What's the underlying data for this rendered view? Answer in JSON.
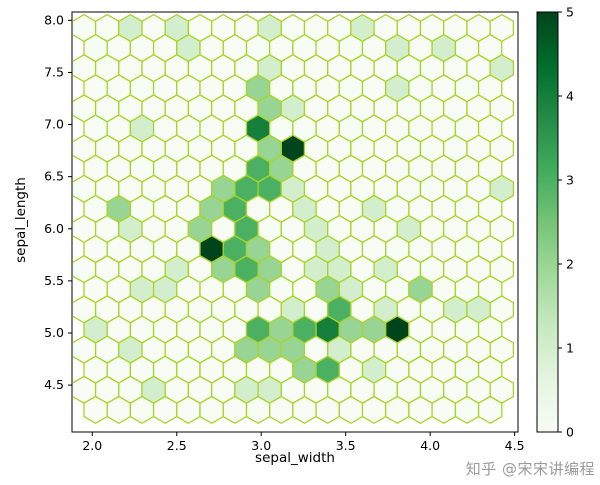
{
  "watermark": "知乎 @宋宋讲编程",
  "chart_data": {
    "type": "heatmap",
    "subtype": "hexbin",
    "title": "",
    "xlabel": "sepal_width",
    "ylabel": "sepal_length",
    "xlim": [
      1.88,
      4.52
    ],
    "ylim": [
      4.05,
      8.08
    ],
    "xticks": [
      2.0,
      2.5,
      3.0,
      3.5,
      4.0,
      4.5
    ],
    "yticks": [
      4.5,
      5.0,
      5.5,
      6.0,
      6.5,
      7.0,
      7.5,
      8.0
    ],
    "grid": false,
    "colorbar": {
      "min": 0,
      "max": 5,
      "ticks": [
        0,
        1,
        2,
        3,
        4,
        5
      ],
      "position": "right"
    },
    "colormap_name": "Greens",
    "colormap_anchors": [
      "#f7fcf5",
      "#e5f5e0",
      "#c7e9c0",
      "#a1d99b",
      "#74c476",
      "#41ab5d",
      "#238b45",
      "#006d2c",
      "#00441b"
    ],
    "hex_edge_color": "#a8d428",
    "zero_count_color": "#f7fcf5",
    "cells_format": "[sepal_width, sepal_length, count]",
    "cells": [
      [
        2.2,
        7.95,
        1
      ],
      [
        2.5,
        7.9,
        1
      ],
      [
        3.0,
        7.9,
        1
      ],
      [
        3.6,
        7.9,
        1
      ],
      [
        4.1,
        7.8,
        1
      ],
      [
        3.8,
        7.7,
        1
      ],
      [
        2.6,
        7.7,
        1
      ],
      [
        3.0,
        7.6,
        1
      ],
      [
        4.45,
        7.55,
        1
      ],
      [
        2.95,
        7.35,
        2
      ],
      [
        3.05,
        7.25,
        1
      ],
      [
        3.8,
        7.35,
        1
      ],
      [
        3.0,
        7.1,
        2
      ],
      [
        3.15,
        7.15,
        1
      ],
      [
        2.3,
        6.95,
        1
      ],
      [
        3.05,
        6.95,
        4
      ],
      [
        3.0,
        6.8,
        2
      ],
      [
        3.15,
        6.75,
        5
      ],
      [
        2.95,
        6.6,
        3
      ],
      [
        3.1,
        6.55,
        2
      ],
      [
        3.25,
        6.45,
        1
      ],
      [
        2.85,
        6.45,
        3
      ],
      [
        3.0,
        6.4,
        2
      ],
      [
        3.1,
        6.3,
        3
      ],
      [
        2.75,
        6.3,
        2
      ],
      [
        2.9,
        6.2,
        3
      ],
      [
        3.2,
        6.2,
        1
      ],
      [
        2.22,
        6.2,
        2
      ],
      [
        2.65,
        6.1,
        2
      ],
      [
        2.8,
        6.1,
        2
      ],
      [
        2.95,
        6.05,
        3
      ],
      [
        3.3,
        6.0,
        1
      ],
      [
        2.2,
        6.0,
        1
      ],
      [
        3.6,
        6.1,
        1
      ],
      [
        3.85,
        6.0,
        1
      ],
      [
        4.4,
        6.45,
        1
      ],
      [
        2.7,
        5.95,
        2
      ],
      [
        2.65,
        5.8,
        5
      ],
      [
        2.8,
        5.85,
        3
      ],
      [
        2.9,
        5.9,
        2
      ],
      [
        2.75,
        5.7,
        2
      ],
      [
        2.95,
        5.7,
        3
      ],
      [
        3.05,
        5.75,
        2
      ],
      [
        2.85,
        5.55,
        3
      ],
      [
        3.0,
        5.55,
        2
      ],
      [
        2.55,
        5.6,
        1
      ],
      [
        2.4,
        5.5,
        1
      ],
      [
        2.3,
        5.45,
        1
      ],
      [
        3.3,
        5.6,
        1
      ],
      [
        3.5,
        5.65,
        1
      ],
      [
        3.45,
        5.75,
        1
      ],
      [
        3.8,
        5.55,
        1
      ],
      [
        3.0,
        5.4,
        2
      ],
      [
        3.4,
        5.4,
        2
      ],
      [
        3.55,
        5.35,
        1
      ],
      [
        3.2,
        5.3,
        1
      ],
      [
        3.45,
        5.25,
        2
      ],
      [
        3.7,
        5.3,
        1
      ],
      [
        3.88,
        5.4,
        2
      ],
      [
        4.15,
        5.25,
        1
      ],
      [
        4.35,
        5.15,
        1
      ],
      [
        3.75,
        5.1,
        5
      ],
      [
        3.55,
        5.1,
        2
      ],
      [
        3.4,
        5.15,
        3
      ],
      [
        3.3,
        5.1,
        2
      ],
      [
        3.15,
        5.05,
        2
      ],
      [
        3.0,
        5.0,
        3
      ],
      [
        3.45,
        4.95,
        4
      ],
      [
        3.3,
        4.95,
        3
      ],
      [
        3.6,
        5.0,
        2
      ],
      [
        3.2,
        4.9,
        2
      ],
      [
        3.1,
        4.85,
        2
      ],
      [
        2.9,
        4.9,
        2
      ],
      [
        3.5,
        4.85,
        1
      ],
      [
        3.0,
        4.75,
        2
      ],
      [
        3.2,
        4.7,
        2
      ],
      [
        3.35,
        4.6,
        3
      ],
      [
        3.1,
        4.55,
        1
      ],
      [
        2.95,
        4.5,
        1
      ],
      [
        3.6,
        4.65,
        1
      ],
      [
        2.35,
        4.5,
        1
      ],
      [
        2.2,
        4.75,
        1
      ],
      [
        2.05,
        5.0,
        1
      ],
      [
        4.3,
        5.2,
        1
      ]
    ]
  }
}
